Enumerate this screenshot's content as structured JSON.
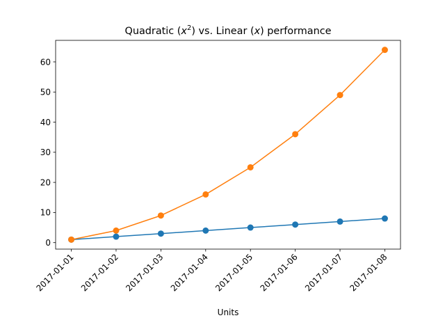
{
  "chart_data": {
    "type": "line",
    "title_main": "Quadratic (",
    "title_var1": "x",
    "title_exp": "2",
    "title_mid": ") vs. Linear (",
    "title_var2": "x",
    "title_end": ") performance",
    "xlabel": "Units",
    "ylabel": "",
    "x": [
      "2017-01-01",
      "2017-01-02",
      "2017-01-03",
      "2017-01-04",
      "2017-01-05",
      "2017-01-06",
      "2017-01-07",
      "2017-01-08"
    ],
    "series": [
      {
        "values": [
          1,
          2,
          3,
          4,
          5,
          6,
          7,
          8
        ],
        "color": "#1f77b4",
        "marker": "circle"
      },
      {
        "values": [
          1,
          4,
          9,
          16,
          25,
          36,
          49,
          64
        ],
        "color": "#ff7f0e",
        "marker": "circle"
      }
    ],
    "ylim": [
      -2.15,
      67.15
    ],
    "yticks": [
      0,
      10,
      20,
      30,
      40,
      50,
      60
    ],
    "grid": false,
    "legend": "none"
  }
}
